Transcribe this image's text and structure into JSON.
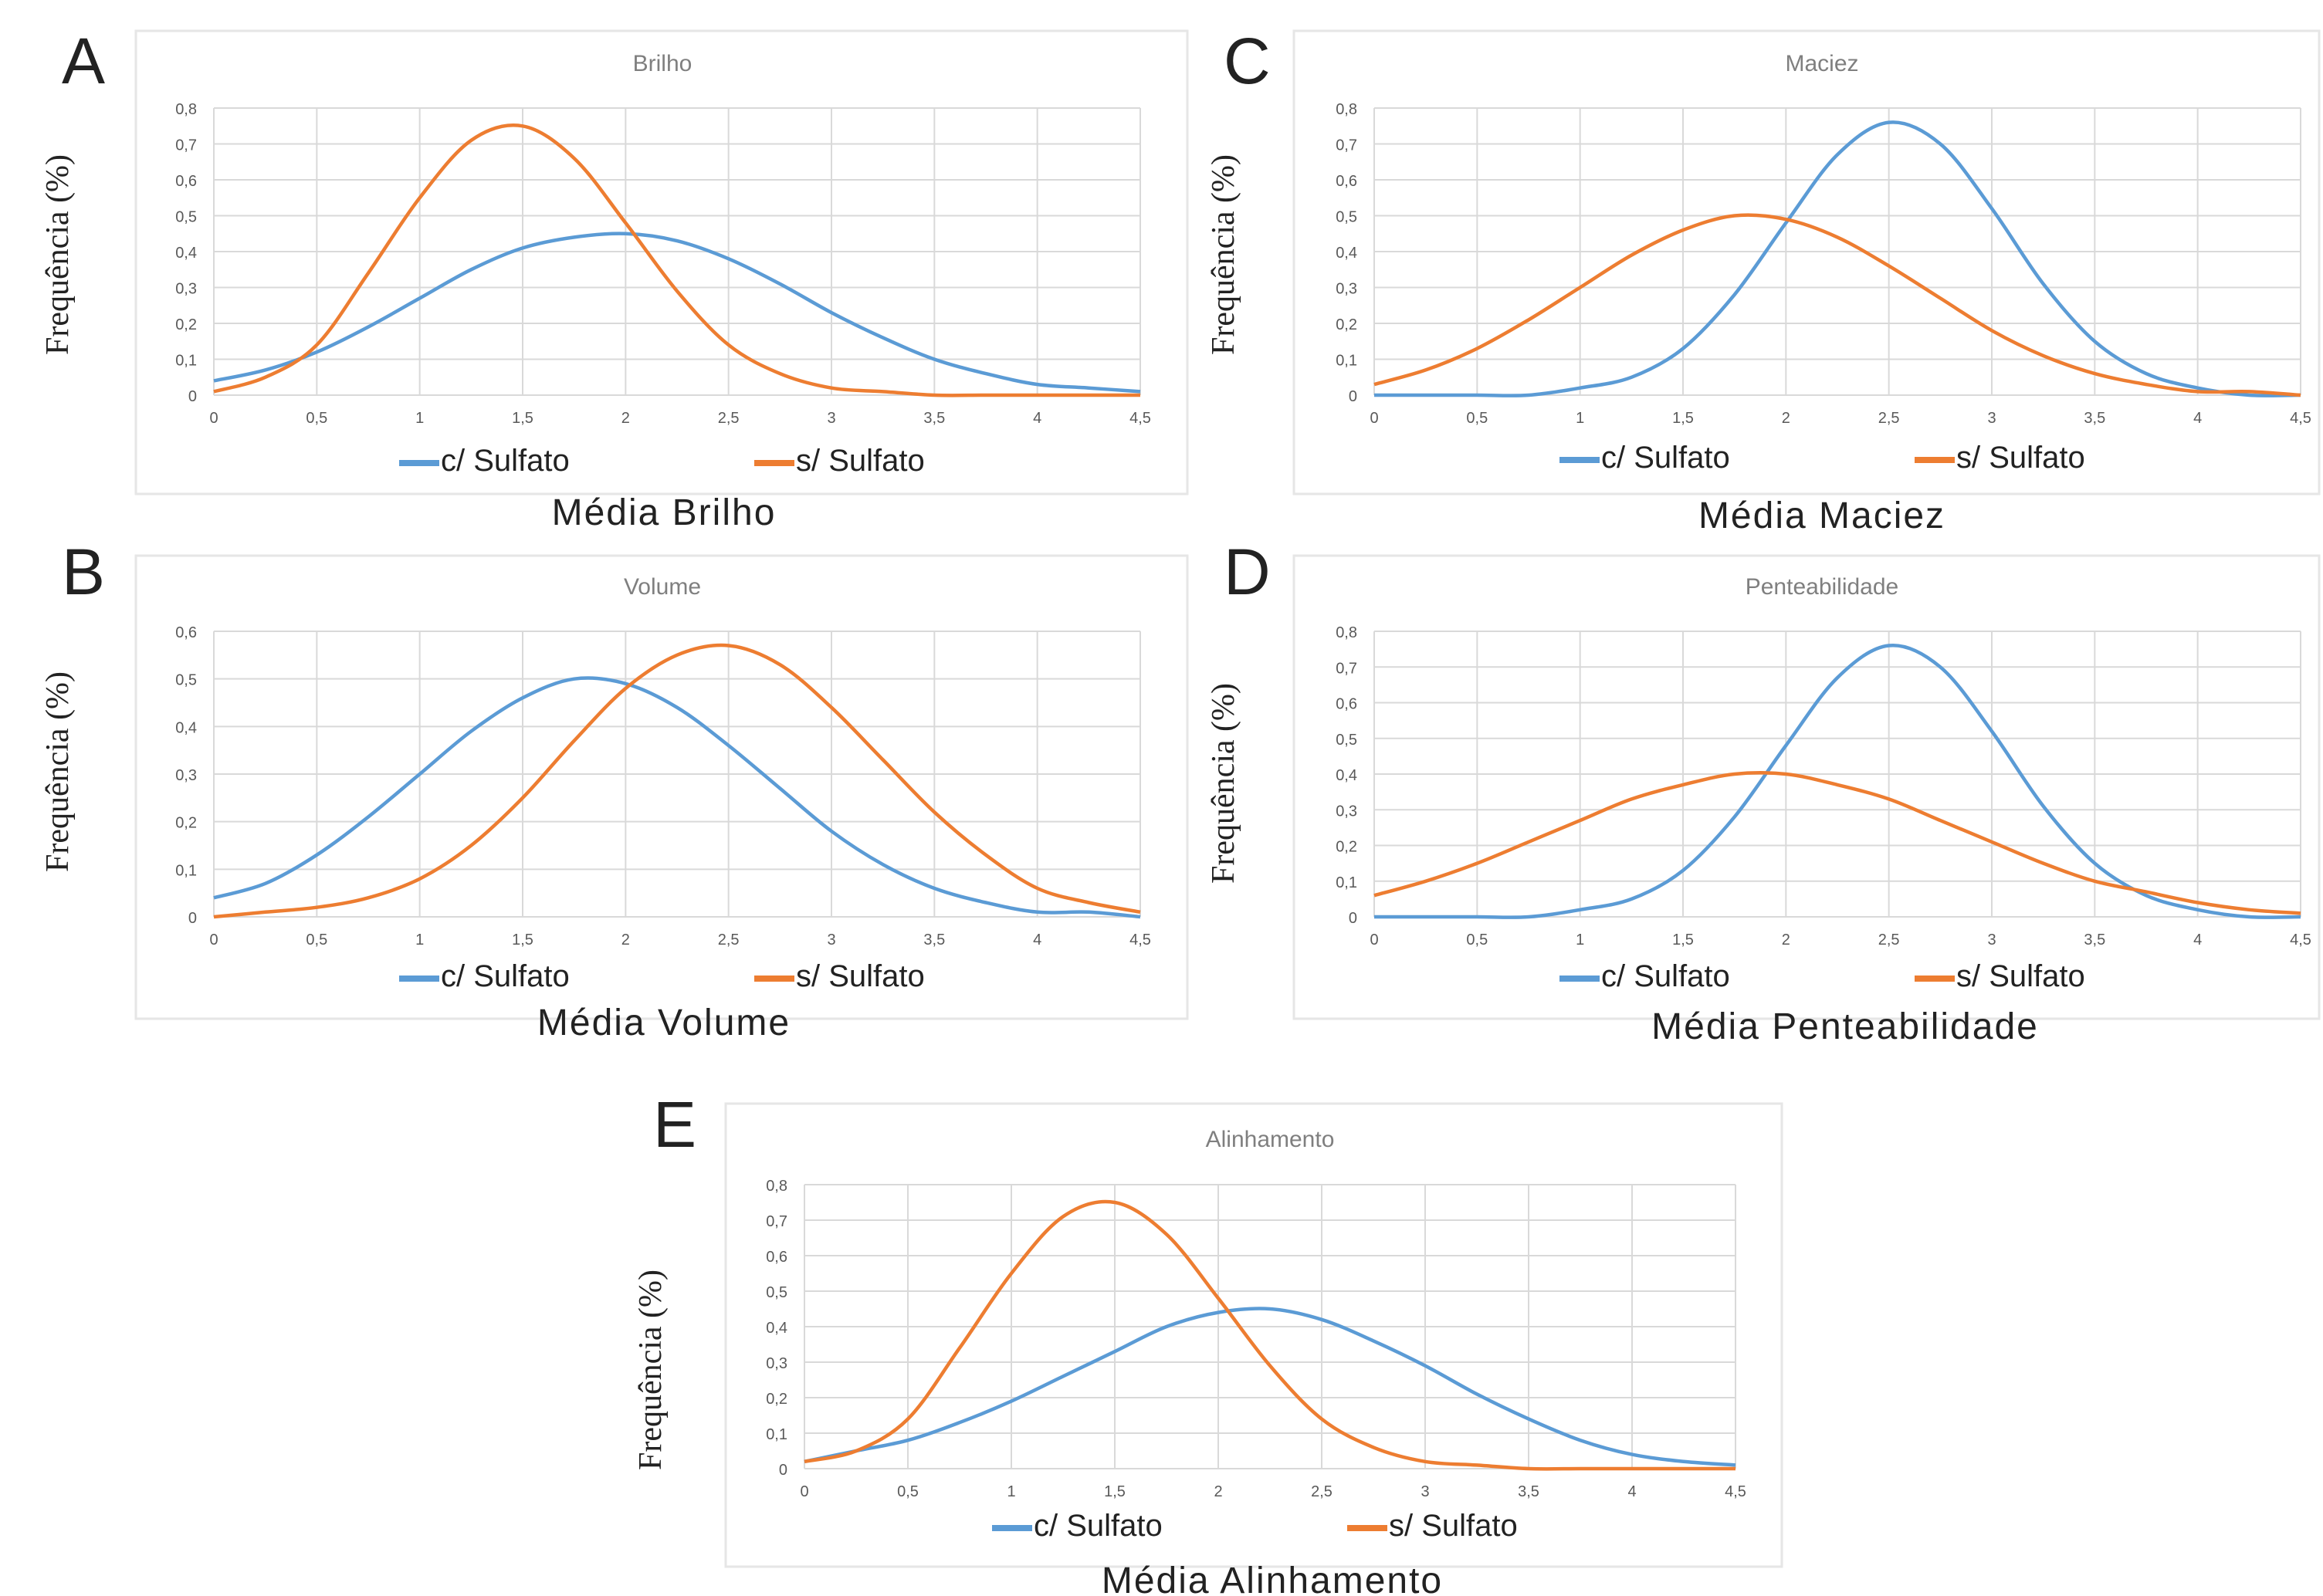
{
  "legend_entries": [
    "c/ Sulfato",
    "s/ Sulfato"
  ],
  "colors": {
    "c_sulfato": "#5b9bd5",
    "s_sulfato": "#ed7d31",
    "grid": "#d9d9d9",
    "axis_text": "#595959",
    "title_text": "#7f7f7f",
    "frame": "#e6e6e6"
  },
  "chart_data": [
    {
      "panel": "A",
      "type": "line",
      "title": "Brilho",
      "xlabel": "Média Brilho",
      "ylabel": "Frequência (%)",
      "xlim": [
        0,
        4.5
      ],
      "ylim": [
        0,
        0.8
      ],
      "x_ticks": [
        "0",
        "0,5",
        "1",
        "1,5",
        "2",
        "2,5",
        "3",
        "3,5",
        "4",
        "4,5"
      ],
      "y_ticks": [
        "0",
        "0,1",
        "0,2",
        "0,3",
        "0,4",
        "0,5",
        "0,6",
        "0,7",
        "0,8"
      ],
      "legend": "bottom",
      "grid": true,
      "x": [
        0,
        0.25,
        0.5,
        0.75,
        1,
        1.25,
        1.5,
        1.75,
        2,
        2.25,
        2.5,
        2.75,
        3,
        3.25,
        3.5,
        3.75,
        4,
        4.25,
        4.5
      ],
      "series": [
        {
          "name": "c/ Sulfato",
          "values": [
            0.04,
            0.07,
            0.12,
            0.19,
            0.27,
            0.35,
            0.41,
            0.44,
            0.45,
            0.43,
            0.38,
            0.31,
            0.23,
            0.16,
            0.1,
            0.06,
            0.03,
            0.02,
            0.01
          ]
        },
        {
          "name": "s/ Sulfato",
          "values": [
            0.01,
            0.05,
            0.14,
            0.34,
            0.55,
            0.71,
            0.75,
            0.66,
            0.48,
            0.29,
            0.14,
            0.06,
            0.02,
            0.01,
            0.0,
            0.0,
            0.0,
            0.0,
            0.0
          ]
        }
      ]
    },
    {
      "panel": "B",
      "type": "line",
      "title": "Volume",
      "xlabel": "Média Volume",
      "ylabel": "Frequência (%)",
      "xlim": [
        0,
        4.5
      ],
      "ylim": [
        0,
        0.6
      ],
      "x_ticks": [
        "0",
        "0,5",
        "1",
        "1,5",
        "2",
        "2,5",
        "3",
        "3,5",
        "4",
        "4,5"
      ],
      "y_ticks": [
        "0",
        "0,1",
        "0,2",
        "0,3",
        "0,4",
        "0,5",
        "0,6"
      ],
      "legend": "bottom",
      "grid": true,
      "x": [
        0,
        0.25,
        0.5,
        0.75,
        1,
        1.25,
        1.5,
        1.75,
        2,
        2.25,
        2.5,
        2.75,
        3,
        3.25,
        3.5,
        3.75,
        4,
        4.25,
        4.5
      ],
      "series": [
        {
          "name": "c/ Sulfato",
          "values": [
            0.04,
            0.07,
            0.13,
            0.21,
            0.3,
            0.39,
            0.46,
            0.5,
            0.49,
            0.44,
            0.36,
            0.27,
            0.18,
            0.11,
            0.06,
            0.03,
            0.01,
            0.01,
            0.0
          ]
        },
        {
          "name": "s/ Sulfato",
          "values": [
            0.0,
            0.01,
            0.02,
            0.04,
            0.08,
            0.15,
            0.25,
            0.37,
            0.48,
            0.55,
            0.57,
            0.53,
            0.44,
            0.33,
            0.22,
            0.13,
            0.06,
            0.03,
            0.01
          ]
        }
      ]
    },
    {
      "panel": "C",
      "type": "line",
      "title": "Maciez",
      "xlabel": "Média Maciez",
      "ylabel": "Frequência (%)",
      "xlim": [
        0,
        4.5
      ],
      "ylim": [
        0,
        0.8
      ],
      "x_ticks": [
        "0",
        "0,5",
        "1",
        "1,5",
        "2",
        "2,5",
        "3",
        "3,5",
        "4",
        "4,5"
      ],
      "y_ticks": [
        "0",
        "0,1",
        "0,2",
        "0,3",
        "0,4",
        "0,5",
        "0,6",
        "0,7",
        "0,8"
      ],
      "legend": "bottom",
      "grid": true,
      "x": [
        0,
        0.25,
        0.5,
        0.75,
        1,
        1.25,
        1.5,
        1.75,
        2,
        2.25,
        2.5,
        2.75,
        3,
        3.25,
        3.5,
        3.75,
        4,
        4.25,
        4.5
      ],
      "series": [
        {
          "name": "c/ Sulfato",
          "values": [
            0.0,
            0.0,
            0.0,
            0.0,
            0.02,
            0.05,
            0.13,
            0.28,
            0.48,
            0.67,
            0.76,
            0.7,
            0.52,
            0.31,
            0.15,
            0.06,
            0.02,
            0.0,
            0.0
          ]
        },
        {
          "name": "s/ Sulfato",
          "values": [
            0.03,
            0.07,
            0.13,
            0.21,
            0.3,
            0.39,
            0.46,
            0.5,
            0.49,
            0.44,
            0.36,
            0.27,
            0.18,
            0.11,
            0.06,
            0.03,
            0.01,
            0.01,
            0.0
          ]
        }
      ]
    },
    {
      "panel": "D",
      "type": "line",
      "title": "Penteabilidade",
      "xlabel": "Média Penteabilidade",
      "ylabel": "Frequência (%)",
      "xlim": [
        0,
        4.5
      ],
      "ylim": [
        0,
        0.8
      ],
      "x_ticks": [
        "0",
        "0,5",
        "1",
        "1,5",
        "2",
        "2,5",
        "3",
        "3,5",
        "4",
        "4,5"
      ],
      "y_ticks": [
        "0",
        "0,1",
        "0,2",
        "0,3",
        "0,4",
        "0,5",
        "0,6",
        "0,7",
        "0,8"
      ],
      "legend": "bottom",
      "grid": true,
      "x": [
        0,
        0.25,
        0.5,
        0.75,
        1,
        1.25,
        1.5,
        1.75,
        2,
        2.25,
        2.5,
        2.75,
        3,
        3.25,
        3.5,
        3.75,
        4,
        4.25,
        4.5
      ],
      "series": [
        {
          "name": "c/ Sulfato",
          "values": [
            0.0,
            0.0,
            0.0,
            0.0,
            0.02,
            0.05,
            0.13,
            0.28,
            0.48,
            0.67,
            0.76,
            0.7,
            0.52,
            0.31,
            0.15,
            0.06,
            0.02,
            0.0,
            0.0
          ]
        },
        {
          "name": "s/ Sulfato",
          "values": [
            0.06,
            0.1,
            0.15,
            0.21,
            0.27,
            0.33,
            0.37,
            0.4,
            0.4,
            0.37,
            0.33,
            0.27,
            0.21,
            0.15,
            0.1,
            0.07,
            0.04,
            0.02,
            0.01
          ]
        }
      ]
    },
    {
      "panel": "E",
      "type": "line",
      "title": "Alinhamento",
      "xlabel": "Média Alinhamento",
      "ylabel": "Frequência (%)",
      "xlim": [
        0,
        4.5
      ],
      "ylim": [
        0,
        0.8
      ],
      "x_ticks": [
        "0",
        "0,5",
        "1",
        "1,5",
        "2",
        "2,5",
        "3",
        "3,5",
        "4",
        "4,5"
      ],
      "y_ticks": [
        "0",
        "0,1",
        "0,2",
        "0,3",
        "0,4",
        "0,5",
        "0,6",
        "0,7",
        "0,8"
      ],
      "legend": "bottom",
      "grid": true,
      "x": [
        0,
        0.25,
        0.5,
        0.75,
        1,
        1.25,
        1.5,
        1.75,
        2,
        2.25,
        2.5,
        2.75,
        3,
        3.25,
        3.5,
        3.75,
        4,
        4.25,
        4.5
      ],
      "series": [
        {
          "name": "c/ Sulfato",
          "values": [
            0.02,
            0.05,
            0.08,
            0.13,
            0.19,
            0.26,
            0.33,
            0.4,
            0.44,
            0.45,
            0.42,
            0.36,
            0.29,
            0.21,
            0.14,
            0.08,
            0.04,
            0.02,
            0.01
          ]
        },
        {
          "name": "s/ Sulfato",
          "values": [
            0.02,
            0.05,
            0.14,
            0.34,
            0.55,
            0.71,
            0.75,
            0.66,
            0.48,
            0.29,
            0.14,
            0.06,
            0.02,
            0.01,
            0.0,
            0.0,
            0.0,
            0.0,
            0.0
          ]
        }
      ]
    }
  ]
}
